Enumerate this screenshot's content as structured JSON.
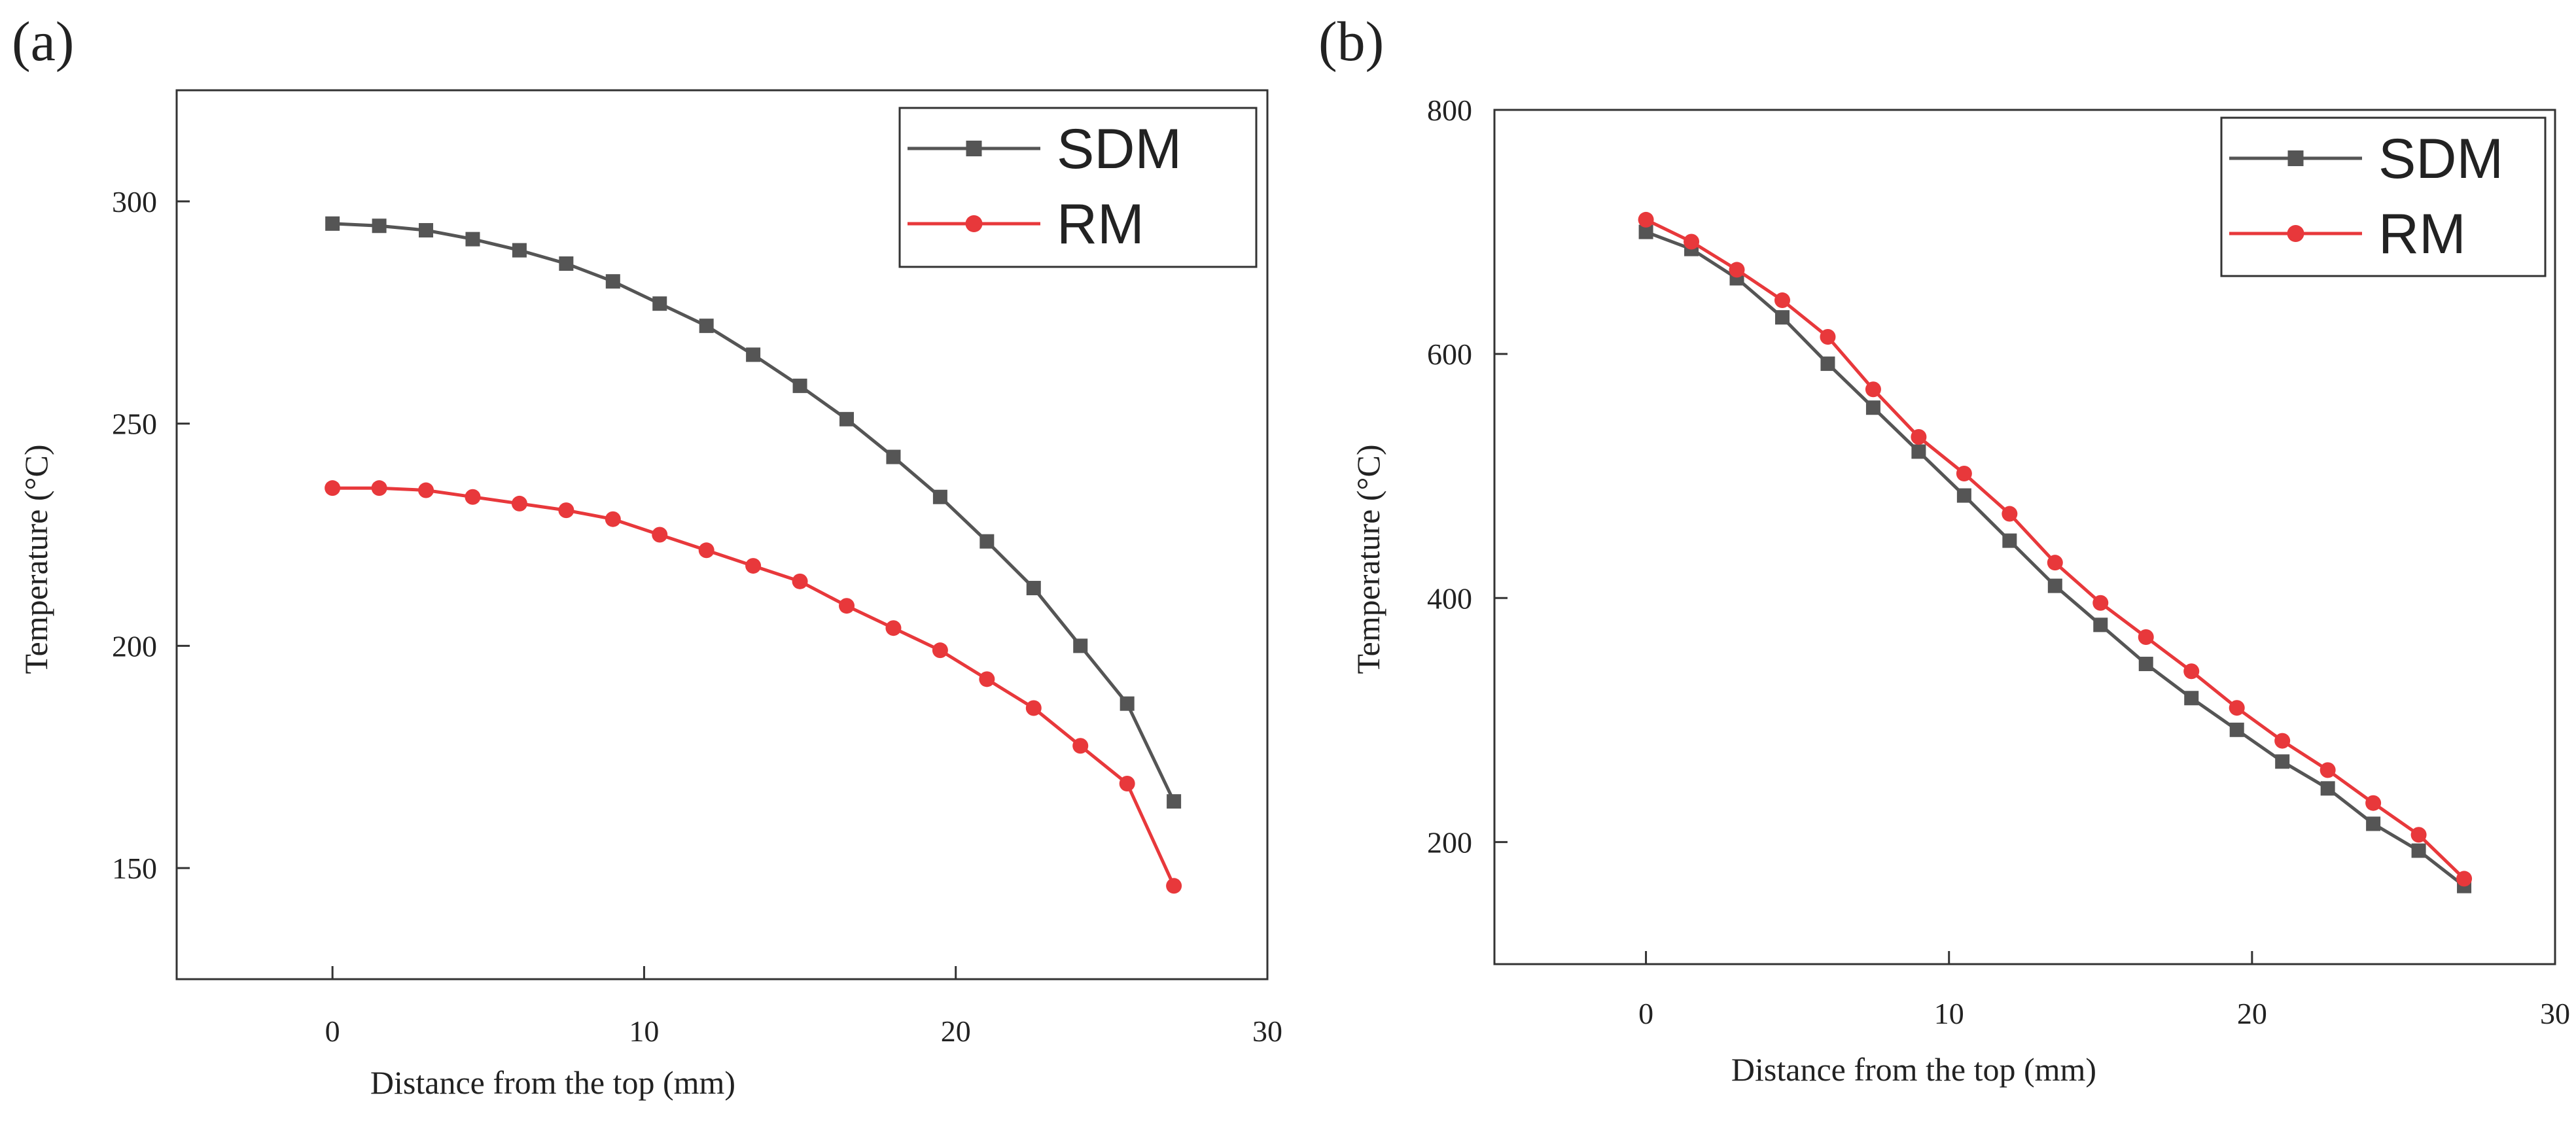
{
  "colors": {
    "SDM": "#555555",
    "RM": "#e8383b",
    "axis": "#333333"
  },
  "chart_data": [
    {
      "panel": "(a)",
      "type": "line",
      "xlabel": "Distance from the top (mm)",
      "ylabel": "Temperature (°C)",
      "xlim": [
        -5,
        30
      ],
      "ylim": [
        125,
        325
      ],
      "xticks": [
        0,
        10,
        20,
        30
      ],
      "yticks": [
        150,
        200,
        250,
        300
      ],
      "legend_position": "top-right",
      "x": [
        0,
        1.5,
        3,
        4.5,
        6,
        7.5,
        9,
        10.5,
        12,
        13.5,
        15,
        16.5,
        18,
        19.5,
        21,
        22.5,
        24,
        25.5,
        27
      ],
      "series": [
        {
          "name": "SDM",
          "marker": "square",
          "values": [
            295,
            294.5,
            293.5,
            291.5,
            289,
            286,
            282,
            277,
            272,
            265.5,
            258.5,
            251,
            242.5,
            233.5,
            223.5,
            213,
            200,
            187,
            165
          ]
        },
        {
          "name": "RM",
          "marker": "circle",
          "values": [
            235.5,
            235.5,
            235,
            233.5,
            232,
            230.5,
            228.5,
            225,
            221.5,
            218,
            214.5,
            209,
            204,
            199,
            192.5,
            186,
            177.5,
            169,
            146
          ]
        }
      ]
    },
    {
      "panel": "(b)",
      "type": "line",
      "xlabel": "Distance from the top (mm)",
      "ylabel": "Temperature (°C)",
      "xlim": [
        -5,
        30
      ],
      "ylim": [
        100,
        800
      ],
      "xticks": [
        0,
        10,
        20,
        30
      ],
      "yticks": [
        200,
        400,
        600,
        800
      ],
      "legend_position": "top-right",
      "x": [
        0,
        1.5,
        3,
        4.5,
        6,
        7.5,
        9,
        10.5,
        12,
        13.5,
        15,
        16.5,
        18,
        19.5,
        21,
        22.5,
        24,
        25.5,
        27
      ],
      "series": [
        {
          "name": "SDM",
          "marker": "square",
          "values": [
            700,
            686,
            662,
            630,
            592,
            556,
            520,
            484,
            447,
            410,
            378,
            346,
            318,
            292,
            266,
            244,
            215,
            193,
            164
          ]
        },
        {
          "name": "RM",
          "marker": "circle",
          "values": [
            710,
            692,
            669,
            644,
            614,
            571,
            532,
            502,
            469,
            429,
            396,
            368,
            340,
            310,
            283,
            259,
            232,
            206,
            170
          ]
        }
      ]
    }
  ]
}
